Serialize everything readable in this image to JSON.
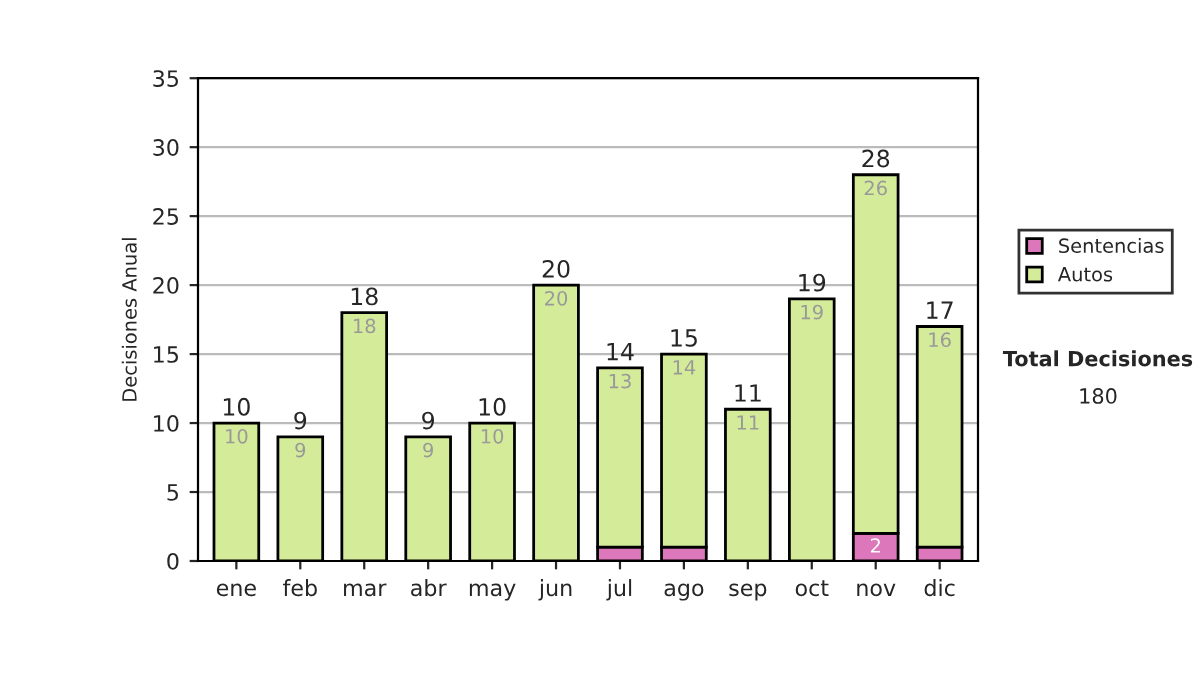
{
  "chart_data": {
    "type": "bar",
    "stacked": true,
    "ylabel": "Decisiones Anual",
    "categories": [
      "ene",
      "feb",
      "mar",
      "abr",
      "may",
      "jun",
      "jul",
      "ago",
      "sep",
      "oct",
      "nov",
      "dic"
    ],
    "series": [
      {
        "name": "Sentencias",
        "color": "#dd77bb",
        "values": [
          0,
          0,
          0,
          0,
          0,
          0,
          1,
          1,
          0,
          0,
          2,
          1
        ],
        "value_labels": [
          null,
          null,
          null,
          null,
          null,
          null,
          null,
          null,
          null,
          null,
          "2",
          null
        ]
      },
      {
        "name": "Autos",
        "color": "#d4eb99",
        "values": [
          10,
          9,
          18,
          9,
          10,
          20,
          13,
          14,
          11,
          19,
          26,
          16
        ],
        "value_labels": [
          "10",
          "9",
          "18",
          "9",
          "10",
          "20",
          "13",
          "14",
          "11",
          "19",
          "26",
          "16"
        ]
      }
    ],
    "totals": [
      "10",
      "9",
      "18",
      "9",
      "10",
      "20",
      "14",
      "15",
      "11",
      "19",
      "28",
      "17"
    ],
    "ylim": [
      0,
      35
    ],
    "yticks": [
      0,
      5,
      10,
      15,
      20,
      25,
      30,
      35
    ],
    "grid": "y",
    "legend": "right",
    "annotations": [
      "Total Decisiones",
      "180"
    ]
  }
}
